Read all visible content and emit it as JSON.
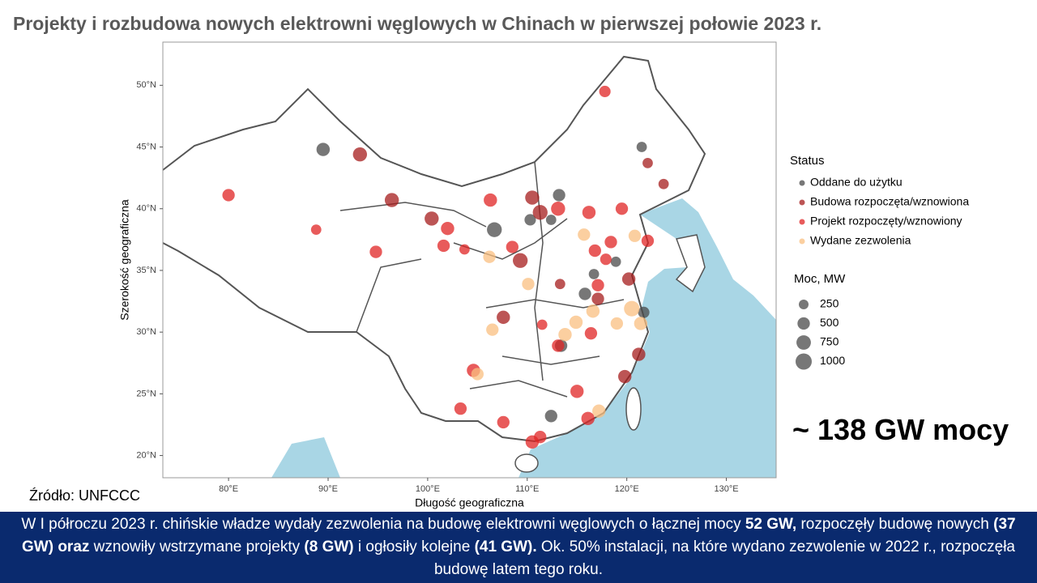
{
  "title": "Projekty i rozbudowa nowych elektrowni węglowych w Chinach w pierwszej połowie 2023 r.",
  "chart_data": {
    "type": "scatter",
    "x_label": "Długość geograficzna",
    "y_label": "Szerokość geograficzna",
    "xlim": [
      73.4,
      135
    ],
    "ylim": [
      18.2,
      53.5
    ],
    "xticks": [
      {
        "value": 80,
        "label": "80°E"
      },
      {
        "value": 90,
        "label": "90°E"
      },
      {
        "value": 100,
        "label": "100°E"
      },
      {
        "value": 110,
        "label": "110°E"
      },
      {
        "value": 120,
        "label": "120°E"
      },
      {
        "value": 130,
        "label": "130°E"
      }
    ],
    "yticks": [
      {
        "value": 20,
        "label": "20°N"
      },
      {
        "value": 25,
        "label": "25°N"
      },
      {
        "value": 30,
        "label": "30°N"
      },
      {
        "value": 35,
        "label": "35°N"
      },
      {
        "value": 40,
        "label": "40°N"
      },
      {
        "value": 45,
        "label": "45°N"
      },
      {
        "value": 50,
        "label": "50°N"
      }
    ],
    "legend_title": "Status",
    "size_legend_title": "Moc, MW",
    "size_legend": [
      250,
      500,
      750,
      1000
    ],
    "series": [
      {
        "name": "Oddane do użytku",
        "color": "#4a4a4a",
        "x": [
          89.5,
          121.5,
          113.2,
          112.4,
          106.7,
          110.3,
          116.7,
          118.9,
          115.8,
          121.7,
          113.4,
          112.4
        ],
        "y": [
          44.8,
          45.0,
          41.1,
          39.1,
          38.3,
          39.1,
          34.7,
          35.7,
          33.1,
          31.6,
          28.9,
          23.2
        ],
        "sizes": [
          600,
          300,
          500,
          300,
          800,
          400,
          300,
          300,
          500,
          400,
          500,
          500
        ]
      },
      {
        "name": "Budowa rozpoczęta/wznowiona",
        "color": "#a51c1c",
        "x": [
          93.2,
          96.4,
          100.4,
          109.3,
          113.3,
          110.5,
          111.3,
          120.2,
          121.2,
          119.8,
          122.1,
          123.7,
          107.6,
          117.1
        ],
        "y": [
          44.4,
          40.7,
          39.2,
          35.8,
          33.9,
          40.9,
          39.7,
          34.3,
          28.2,
          26.4,
          43.7,
          42.0,
          31.2,
          32.7
        ],
        "sizes": [
          700,
          700,
          700,
          800,
          300,
          700,
          800,
          600,
          600,
          600,
          300,
          300,
          600,
          500
        ]
      },
      {
        "name": "Projekt rozpoczęty/wznowiony",
        "color": "#e02424",
        "x": [
          80.0,
          117.8,
          94.8,
          106.3,
          102.0,
          101.6,
          103.7,
          108.5,
          113.1,
          116.2,
          119.5,
          116.8,
          118.4,
          122.1,
          117.9,
          117.1,
          115.0,
          107.6,
          110.5,
          111.3,
          116.1,
          104.6,
          111.5,
          116.4,
          113.1,
          103.3,
          88.8
        ],
        "y": [
          41.1,
          49.5,
          36.5,
          40.7,
          38.4,
          37.0,
          36.7,
          36.9,
          40.0,
          39.7,
          40.0,
          36.6,
          37.3,
          37.4,
          35.9,
          33.8,
          25.2,
          22.7,
          21.1,
          21.5,
          23.0,
          26.9,
          30.6,
          29.9,
          28.9,
          23.8,
          38.3
        ],
        "sizes": [
          500,
          400,
          500,
          600,
          600,
          500,
          300,
          500,
          700,
          600,
          500,
          500,
          500,
          500,
          400,
          500,
          600,
          500,
          600,
          500,
          600,
          600,
          300,
          500,
          500,
          500,
          300
        ]
      },
      {
        "name": "Wydane zezwolenia",
        "color": "#f9bf80",
        "x": [
          106.2,
          106.5,
          105.0,
          110.1,
          115.7,
          120.8,
          114.9,
          116.6,
          120.5,
          121.4,
          119.0,
          117.2,
          113.8
        ],
        "y": [
          36.1,
          30.2,
          26.6,
          33.9,
          37.9,
          37.8,
          30.8,
          31.7,
          31.9,
          30.7,
          30.7,
          23.6,
          29.8
        ],
        "sizes": [
          500,
          500,
          500,
          500,
          500,
          500,
          600,
          600,
          900,
          600,
          500,
          600,
          600
        ]
      }
    ]
  },
  "callout": "~ 138 GW mocy",
  "source": "Źródło: UNFCCC",
  "footer": [
    {
      "text": "W I półroczu 2023 r. chińskie władze wydały zezwolenia na budowę elektrowni węglowych o łącznej mocy ",
      "bold": false
    },
    {
      "text": "52 GW,",
      "bold": true
    },
    {
      "text": " rozpoczęły budowę nowych ",
      "bold": false
    },
    {
      "text": "(37 GW) oraz",
      "bold": true
    },
    {
      "text": " wznowiły wstrzymane projekty ",
      "bold": false
    },
    {
      "text": "(8 GW)",
      "bold": true
    },
    {
      "text": " i ogłosiły kolejne ",
      "bold": false
    },
    {
      "text": "(41 GW).",
      "bold": true
    },
    {
      "text": " Ok. 50% instalacji, na które wydano zezwolenie w 2022 r., rozpoczęła budowę latem tego roku.",
      "bold": false
    }
  ]
}
